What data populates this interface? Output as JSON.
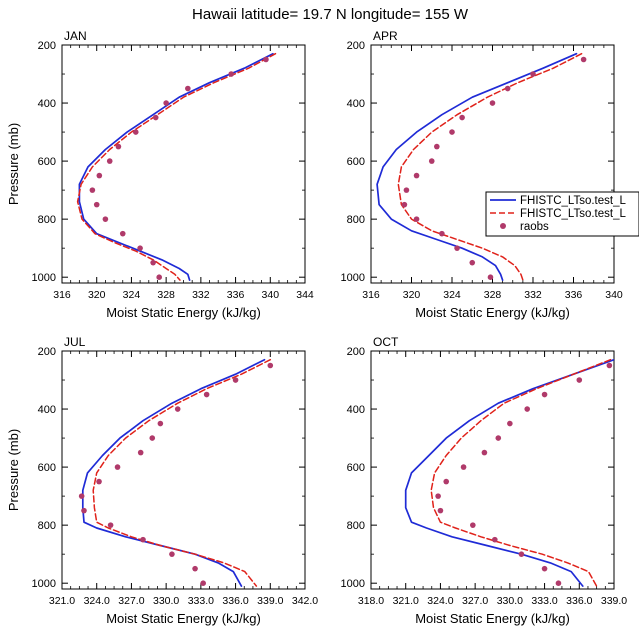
{
  "title": "Hawaii  latitude= 19.7 N longitude= 155 W",
  "legend": {
    "entries": [
      "FHISTC_LTso.test_L",
      "FHISTC_LTso.test_L",
      "raobs"
    ]
  },
  "colors": {
    "model_a": "#1f2bd6",
    "model_b": "#e0221a",
    "obs": "#b03a6a"
  },
  "chart_data": [
    {
      "type": "line",
      "panel": "JAN",
      "xlabel": "Moist Static Energy (kJ/kg)",
      "ylabel": "Pressure (mb)",
      "xlim": [
        316,
        344
      ],
      "ylim": [
        1020,
        200
      ],
      "xticks": [
        "316",
        "320",
        "324",
        "328",
        "332",
        "336",
        "340",
        "344"
      ],
      "yticks": [
        "200",
        "400",
        "600",
        "800",
        "1000"
      ],
      "series": [
        {
          "name": "FHISTC_LTso.test_L",
          "style": "solid",
          "x": [
            340.3,
            337,
            333,
            329.5,
            326.5,
            323.5,
            321,
            319,
            318,
            318,
            318.5,
            320,
            322.5,
            325,
            327.5,
            329.5,
            330.5,
            330.7
          ],
          "y": [
            230,
            280,
            330,
            380,
            440,
            500,
            560,
            620,
            680,
            740,
            800,
            850,
            880,
            910,
            940,
            970,
            990,
            1010
          ]
        },
        {
          "name": "FHISTC_LTso.test_L",
          "style": "dashed",
          "x": [
            340.6,
            337.5,
            333.5,
            330,
            327,
            324,
            321.5,
            319.5,
            318.2,
            317.8,
            318.3,
            319.8,
            322,
            324.5,
            326.5,
            328,
            329,
            329.6
          ],
          "y": [
            230,
            280,
            330,
            380,
            440,
            500,
            560,
            620,
            680,
            740,
            800,
            850,
            880,
            910,
            940,
            970,
            990,
            1010
          ]
        },
        {
          "name": "raobs",
          "style": "points",
          "x": [
            339.5,
            335.5,
            330.5,
            328,
            326.8,
            324.5,
            322.5,
            321.5,
            320.3,
            319.5,
            320,
            321,
            323,
            325,
            326.5,
            327.2
          ],
          "y": [
            250,
            300,
            350,
            400,
            450,
            500,
            550,
            600,
            650,
            700,
            750,
            800,
            850,
            900,
            950,
            1000
          ]
        }
      ]
    },
    {
      "type": "line",
      "panel": "APR",
      "xlabel": "Moist Static Energy (kJ/kg)",
      "ylabel": "",
      "xlim": [
        316,
        340
      ],
      "ylim": [
        1020,
        200
      ],
      "xticks": [
        "316",
        "320",
        "324",
        "328",
        "332",
        "336",
        "340"
      ],
      "yticks": [
        "200",
        "400",
        "600",
        "800",
        "1000"
      ],
      "series": [
        {
          "name": "FHISTC_LTso.test_L",
          "style": "solid",
          "x": [
            336.3,
            333,
            329.5,
            326,
            323,
            320.5,
            318.5,
            317.2,
            316.6,
            316.8,
            318,
            320,
            322.5,
            325,
            327,
            328.3,
            328.8,
            329
          ],
          "y": [
            230,
            280,
            330,
            380,
            440,
            500,
            560,
            620,
            680,
            750,
            800,
            840,
            870,
            900,
            930,
            960,
            990,
            1010
          ]
        },
        {
          "name": "FHISTC_LTso.test_L",
          "style": "dashed",
          "x": [
            336.8,
            334,
            330.5,
            327.5,
            324.5,
            322,
            320.2,
            319,
            318.7,
            319,
            320,
            322,
            324.5,
            327,
            329,
            330.2,
            330.8,
            331
          ],
          "y": [
            230,
            280,
            330,
            380,
            440,
            500,
            560,
            620,
            680,
            750,
            800,
            840,
            870,
            900,
            930,
            960,
            990,
            1010
          ]
        },
        {
          "name": "raobs",
          "style": "points",
          "x": [
            337,
            332,
            329.5,
            328,
            325,
            324,
            322.5,
            322,
            320.5,
            319.5,
            319.3,
            320.5,
            323,
            324.5,
            326,
            327.8
          ],
          "y": [
            250,
            300,
            350,
            400,
            450,
            500,
            550,
            600,
            650,
            700,
            750,
            800,
            850,
            900,
            950,
            1000
          ]
        }
      ]
    },
    {
      "type": "line",
      "panel": "JUL",
      "xlabel": "Moist Static Energy (kJ/kg)",
      "ylabel": "Pressure (mb)",
      "xlim": [
        321,
        342
      ],
      "ylim": [
        1020,
        200
      ],
      "xticks": [
        "321.0",
        "324.0",
        "327.0",
        "330.0",
        "333.0",
        "336.0",
        "339.0",
        "342.0"
      ],
      "yticks": [
        "200",
        "400",
        "600",
        "800",
        "1000"
      ],
      "series": [
        {
          "name": "FHISTC_LTso.test_L",
          "style": "solid",
          "x": [
            338.5,
            336,
            333,
            330.5,
            328,
            326,
            324.5,
            323.2,
            322.8,
            322.8,
            322.9,
            324,
            326.5,
            329.5,
            332.5,
            334.5,
            335.8,
            336.5
          ],
          "y": [
            230,
            280,
            330,
            380,
            440,
            500,
            560,
            620,
            680,
            740,
            790,
            810,
            840,
            870,
            900,
            930,
            960,
            1010
          ]
        },
        {
          "name": "FHISTC_LTso.test_L",
          "style": "dashed",
          "x": [
            339,
            336.5,
            333.5,
            331,
            328.5,
            326.5,
            325,
            324,
            323.7,
            323.8,
            324,
            325,
            327,
            329.5,
            332.5,
            335,
            336.8,
            337.8
          ],
          "y": [
            230,
            280,
            330,
            380,
            440,
            500,
            560,
            620,
            680,
            740,
            790,
            810,
            840,
            870,
            900,
            930,
            960,
            1010
          ]
        },
        {
          "name": "raobs",
          "style": "points",
          "x": [
            339,
            336,
            333.5,
            331,
            329.5,
            328.8,
            327.8,
            325.8,
            324.2,
            322.7,
            322.9,
            325.2,
            328,
            330.5,
            332.5,
            333.2
          ],
          "y": [
            250,
            300,
            350,
            400,
            450,
            500,
            550,
            600,
            650,
            700,
            750,
            800,
            850,
            900,
            950,
            1000
          ]
        }
      ]
    },
    {
      "type": "line",
      "panel": "OCT",
      "xlabel": "Moist Static Energy (kJ/kg)",
      "ylabel": "",
      "xlim": [
        318,
        339
      ],
      "ylim": [
        1020,
        200
      ],
      "xticks": [
        "318.0",
        "321.0",
        "324.0",
        "327.0",
        "330.0",
        "333.0",
        "336.0",
        "339.0"
      ],
      "yticks": [
        "200",
        "400",
        "600",
        "800",
        "1000"
      ],
      "series": [
        {
          "name": "FHISTC_LTso.test_L",
          "style": "solid",
          "x": [
            339,
            335.5,
            332,
            329,
            326.5,
            324.5,
            323,
            321.5,
            321,
            321,
            321.5,
            322.8,
            325,
            328,
            331,
            333.5,
            335.3,
            336.3
          ],
          "y": [
            230,
            280,
            330,
            380,
            440,
            500,
            560,
            620,
            680,
            740,
            790,
            810,
            840,
            870,
            900,
            930,
            960,
            1010
          ]
        },
        {
          "name": "FHISTC_LTso.test_L",
          "style": "dashed",
          "x": [
            338.7,
            335.5,
            332.3,
            329.5,
            327.5,
            325.8,
            324.5,
            323.5,
            323.2,
            323.4,
            324,
            325.3,
            327.5,
            330,
            332.8,
            335,
            336.8,
            337.5
          ],
          "y": [
            230,
            280,
            330,
            380,
            440,
            500,
            560,
            620,
            680,
            740,
            790,
            810,
            840,
            870,
            900,
            930,
            960,
            1010
          ]
        },
        {
          "name": "raobs",
          "style": "points",
          "x": [
            338.6,
            336,
            333,
            331.5,
            330,
            329,
            327.8,
            326,
            324.5,
            323.8,
            324,
            326.8,
            328.7,
            331,
            333,
            334.2
          ],
          "y": [
            250,
            300,
            350,
            400,
            450,
            500,
            550,
            600,
            650,
            700,
            750,
            800,
            850,
            900,
            950,
            1000
          ]
        }
      ]
    }
  ]
}
